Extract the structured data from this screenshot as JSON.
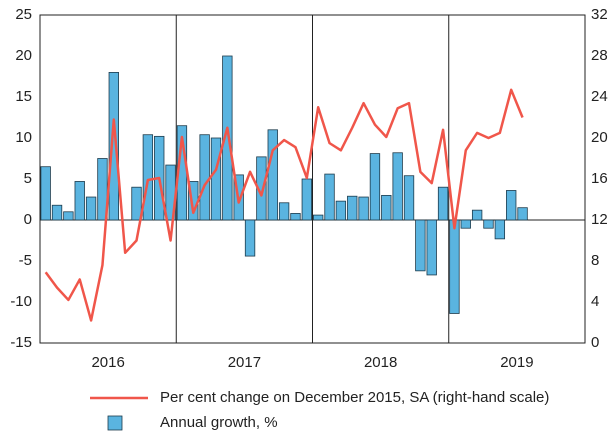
{
  "chart_data": {
    "type": "bar_line",
    "categories": [
      null,
      null,
      null,
      null,
      null,
      null,
      null,
      null,
      null,
      null,
      null,
      null,
      null,
      null,
      null,
      null,
      null,
      null,
      null,
      null,
      null,
      null,
      null,
      null,
      null,
      null,
      null,
      null,
      null,
      null,
      null,
      null,
      null,
      null,
      null,
      null,
      null,
      null,
      null,
      null,
      null,
      null,
      null
    ],
    "years": [
      "2016",
      "2017",
      "2018",
      "2019"
    ],
    "series": [
      {
        "name": "Per cent change on December 2015, SA (right-hand scale)",
        "color": "#f0564a",
        "type": "line",
        "axis": "y2",
        "values": [
          6.9,
          5.4,
          4.2,
          6.2,
          2.2,
          7.6,
          21.8,
          8.8,
          10.0,
          15.9,
          16.1,
          10.0,
          20.1,
          12.7,
          15.4,
          16.9,
          21.0,
          13.7,
          16.7,
          14.4,
          18.8,
          19.8,
          19.1,
          16.1,
          23.0,
          19.5,
          18.8,
          21.0,
          23.4,
          21.3,
          20.1,
          22.9,
          23.4,
          16.7,
          15.6,
          20.8,
          11.2,
          18.8,
          20.5,
          20.0,
          20.5,
          24.7,
          22.0
        ]
      },
      {
        "name": "Annual growth, %",
        "color": "#5ab4e0",
        "type": "bar",
        "values": [
          6.5,
          1.8,
          1.0,
          4.7,
          2.8,
          7.5,
          18.0,
          null,
          4.0,
          10.4,
          10.2,
          6.7,
          11.5,
          4.7,
          10.4,
          10.0,
          20.0,
          5.5,
          -4.4,
          7.7,
          11.0,
          2.1,
          0.8,
          5.0,
          0.6,
          5.6,
          2.3,
          2.9,
          2.8,
          8.1,
          3.0,
          8.2,
          5.4,
          -6.2,
          -6.7,
          4.0,
          -11.4,
          -1.0,
          1.2,
          -1.0,
          -2.3,
          3.6,
          1.5
        ]
      }
    ],
    "ylim": [
      -15,
      25
    ],
    "yticks": [
      -15,
      -10,
      -5,
      0,
      5,
      10,
      15,
      20,
      25
    ],
    "y2lim": [
      0,
      32
    ],
    "y2ticks": [
      0,
      4,
      8,
      12,
      16,
      20,
      24,
      28,
      32
    ]
  }
}
